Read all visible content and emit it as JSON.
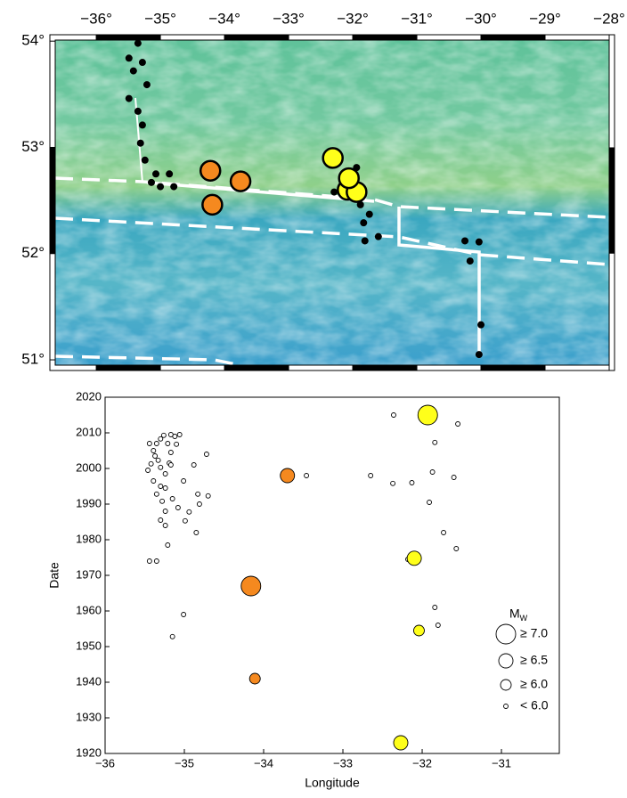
{
  "chart_data": [
    {
      "type": "map",
      "xlim": [
        -36.64,
        -28
      ],
      "ylim": [
        50.95,
        54.01
      ],
      "xticks": [
        {
          "value": -36,
          "label": "−36°"
        },
        {
          "value": -35,
          "label": "−35°"
        },
        {
          "value": -34,
          "label": "−34°"
        },
        {
          "value": -33,
          "label": "−33°"
        },
        {
          "value": -32,
          "label": "−32°"
        },
        {
          "value": -31,
          "label": "−31°"
        },
        {
          "value": -30,
          "label": "−30°"
        },
        {
          "value": -29,
          "label": "−29°"
        },
        {
          "value": -28,
          "label": "−28°"
        }
      ],
      "yticks": [
        {
          "value": 51,
          "label": "51°"
        },
        {
          "value": 52,
          "label": "52°"
        },
        {
          "value": 53,
          "label": "53°"
        },
        {
          "value": 54,
          "label": "54°"
        }
      ],
      "series": [
        {
          "color": "#000000",
          "size": 4,
          "x": [
            -35.35,
            -35.49,
            -35.42,
            -35.28,
            -35.21,
            -35.49,
            -35.35,
            -35.28,
            -35.31,
            -35.24,
            -35.07,
            -34.86,
            -35.0,
            -34.79,
            -35.14,
            -32.29,
            -31.94,
            -31.88,
            -31.83,
            -31.81,
            -31.6,
            -31.74,
            -30.25,
            -30.03,
            -30.17,
            -30.0,
            -30.03
          ],
          "values": [
            53.98,
            53.84,
            53.72,
            53.8,
            53.59,
            53.46,
            53.34,
            53.21,
            53.04,
            52.88,
            52.75,
            52.75,
            52.63,
            52.63,
            52.67,
            52.58,
            52.81,
            52.46,
            52.29,
            52.12,
            52.16,
            52.37,
            52.12,
            52.11,
            51.93,
            51.33,
            51.05
          ]
        },
        {
          "color": "#f5891f",
          "size": 11,
          "x": [
            -34.22,
            -33.75,
            -34.19
          ],
          "values": [
            52.78,
            52.68,
            52.46
          ]
        },
        {
          "color": "#ffff1a",
          "size": 11,
          "x": [
            -32.31,
            -32.08,
            -31.94,
            -32.06
          ],
          "values": [
            52.9,
            52.6,
            52.58,
            52.71
          ]
        }
      ]
    },
    {
      "type": "scatter",
      "xlabel": "Longitude",
      "ylabel": "Date",
      "xlim": [
        -36,
        -30.27
      ],
      "ylim": [
        1920,
        2020
      ],
      "xticks": [
        {
          "value": -36,
          "label": "−36"
        },
        {
          "value": -35,
          "label": "−35"
        },
        {
          "value": -34,
          "label": "−34"
        },
        {
          "value": -33,
          "label": "−33"
        },
        {
          "value": -32,
          "label": "−32"
        },
        {
          "value": -31,
          "label": "−31"
        }
      ],
      "yticks": [
        1920,
        1930,
        1940,
        1950,
        1960,
        1970,
        1980,
        1990,
        2000,
        2010,
        2020
      ],
      "legend_title": "M",
      "legend_title_sub": "W",
      "series": [
        {
          "name": "≥ 7.0",
          "size": 11,
          "x": [
            -34.16,
            -31.93
          ],
          "values": [
            1967,
            2015
          ],
          "colors": [
            "#f5891f",
            "#ffff1a"
          ]
        },
        {
          "name": "≥ 6.5",
          "size": 8,
          "x": [
            -33.7,
            -32.1,
            -32.27
          ],
          "values": [
            1998,
            1974.8,
            1923
          ],
          "colors": [
            "#f5891f",
            "#ffff1a",
            "#ffff1a"
          ]
        },
        {
          "name": "≥ 6.0",
          "size": 6,
          "x": [
            -34.11,
            -32.04
          ],
          "values": [
            1941,
            1954.5
          ],
          "colors": [
            "#f5891f",
            "#ffff1a"
          ]
        },
        {
          "name": "< 6.0",
          "size": 2.5,
          "color": "#ffffff",
          "x": [
            -35.44,
            -35.39,
            -35.35,
            -35.3,
            -35.26,
            -35.21,
            -35.17,
            -35.12,
            -35.1,
            -35.06,
            -35.42,
            -35.37,
            -35.33,
            -35.3,
            -35.24,
            -35.19,
            -35.17,
            -35.46,
            -35.39,
            -35.3,
            -35.24,
            -35.17,
            -35.35,
            -35.28,
            -35.24,
            -35.3,
            -35.24,
            -35.21,
            -35.44,
            -35.35,
            -35.15,
            -35.01,
            -34.94,
            -34.83,
            -34.81,
            -35.08,
            -34.88,
            -34.72,
            -34.7,
            -34.99,
            -34.85,
            -35.01,
            -35.15,
            -32.36,
            -31.55,
            -31.84,
            -32.65,
            -32.37,
            -32.13,
            -31.87,
            -31.6,
            -31.91,
            -31.73,
            -31.57,
            -32.18,
            -31.84,
            -31.8,
            -33.46,
            -31.89
          ],
          "values": [
            2007,
            2005,
            2007,
            2008.3,
            2009.3,
            2007,
            2009.5,
            2009,
            2006.8,
            2009.5,
            2001.3,
            2003.5,
            2002.3,
            2000.3,
            1998.5,
            2001.5,
            2001,
            1999.5,
            1996.5,
            1995,
            1994.5,
            2004.5,
            1992.8,
            1990.8,
            1988,
            1985.5,
            1984,
            1978.5,
            1974,
            1974,
            1991.5,
            1996.5,
            1987.8,
            1992.8,
            1990,
            1989,
            2001,
            2004,
            1992.3,
            1985.3,
            1982,
            1959,
            1952.8,
            2015,
            2012.5,
            2007.3,
            1998,
            1995.8,
            1996,
            1999,
            1997.5,
            1990.5,
            1982,
            1977.5,
            1974.5,
            1961,
            1956,
            1998,
            2015
          ]
        }
      ]
    }
  ]
}
